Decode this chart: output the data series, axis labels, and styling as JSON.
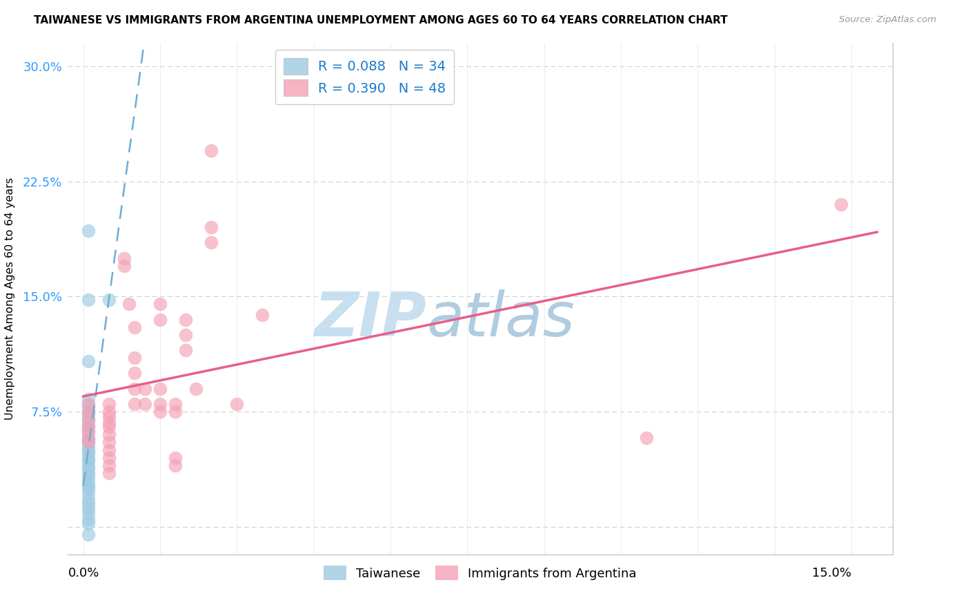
{
  "title": "TAIWANESE VS IMMIGRANTS FROM ARGENTINA UNEMPLOYMENT AMONG AGES 60 TO 64 YEARS CORRELATION CHART",
  "source": "Source: ZipAtlas.com",
  "ylabel": "Unemployment Among Ages 60 to 64 years",
  "y_ticks": [
    0.0,
    0.075,
    0.15,
    0.225,
    0.3
  ],
  "y_tick_labels": [
    "",
    "7.5%",
    "15.0%",
    "22.5%",
    "30.0%"
  ],
  "xlim": [
    -0.003,
    0.158
  ],
  "ylim": [
    -0.018,
    0.315
  ],
  "legend_tw": {
    "R": 0.088,
    "N": 34
  },
  "legend_ar": {
    "R": 0.39,
    "N": 48
  },
  "taiwanese_scatter": [
    [
      0.001,
      0.193
    ],
    [
      0.001,
      0.148
    ],
    [
      0.005,
      0.148
    ],
    [
      0.001,
      0.108
    ],
    [
      0.001,
      0.083
    ],
    [
      0.001,
      0.079
    ],
    [
      0.001,
      0.075
    ],
    [
      0.001,
      0.073
    ],
    [
      0.001,
      0.07
    ],
    [
      0.001,
      0.068
    ],
    [
      0.001,
      0.065
    ],
    [
      0.001,
      0.062
    ],
    [
      0.001,
      0.058
    ],
    [
      0.001,
      0.055
    ],
    [
      0.001,
      0.052
    ],
    [
      0.001,
      0.05
    ],
    [
      0.001,
      0.048
    ],
    [
      0.001,
      0.045
    ],
    [
      0.001,
      0.043
    ],
    [
      0.001,
      0.04
    ],
    [
      0.001,
      0.038
    ],
    [
      0.001,
      0.035
    ],
    [
      0.001,
      0.033
    ],
    [
      0.001,
      0.03
    ],
    [
      0.001,
      0.027
    ],
    [
      0.001,
      0.025
    ],
    [
      0.001,
      0.022
    ],
    [
      0.001,
      0.018
    ],
    [
      0.001,
      0.015
    ],
    [
      0.001,
      0.012
    ],
    [
      0.001,
      0.009
    ],
    [
      0.001,
      0.005
    ],
    [
      0.001,
      0.002
    ],
    [
      0.001,
      -0.005
    ]
  ],
  "argentina_scatter": [
    [
      0.001,
      0.08
    ],
    [
      0.001,
      0.075
    ],
    [
      0.001,
      0.07
    ],
    [
      0.001,
      0.065
    ],
    [
      0.001,
      0.062
    ],
    [
      0.001,
      0.058
    ],
    [
      0.001,
      0.055
    ],
    [
      0.005,
      0.08
    ],
    [
      0.005,
      0.075
    ],
    [
      0.005,
      0.072
    ],
    [
      0.005,
      0.068
    ],
    [
      0.005,
      0.065
    ],
    [
      0.005,
      0.06
    ],
    [
      0.005,
      0.055
    ],
    [
      0.005,
      0.05
    ],
    [
      0.005,
      0.045
    ],
    [
      0.005,
      0.04
    ],
    [
      0.005,
      0.035
    ],
    [
      0.008,
      0.175
    ],
    [
      0.008,
      0.17
    ],
    [
      0.009,
      0.145
    ],
    [
      0.01,
      0.13
    ],
    [
      0.01,
      0.11
    ],
    [
      0.01,
      0.1
    ],
    [
      0.01,
      0.09
    ],
    [
      0.01,
      0.08
    ],
    [
      0.012,
      0.09
    ],
    [
      0.012,
      0.08
    ],
    [
      0.015,
      0.145
    ],
    [
      0.015,
      0.135
    ],
    [
      0.015,
      0.09
    ],
    [
      0.015,
      0.08
    ],
    [
      0.015,
      0.075
    ],
    [
      0.018,
      0.08
    ],
    [
      0.018,
      0.075
    ],
    [
      0.018,
      0.045
    ],
    [
      0.018,
      0.04
    ],
    [
      0.02,
      0.135
    ],
    [
      0.02,
      0.125
    ],
    [
      0.02,
      0.115
    ],
    [
      0.022,
      0.09
    ],
    [
      0.025,
      0.245
    ],
    [
      0.025,
      0.195
    ],
    [
      0.025,
      0.185
    ],
    [
      0.03,
      0.08
    ],
    [
      0.035,
      0.138
    ],
    [
      0.11,
      0.058
    ],
    [
      0.148,
      0.21
    ]
  ],
  "tw_line_color": "#6baed6",
  "ar_line_color": "#e85d8a",
  "scatter_blue": "#9ecae1",
  "scatter_pink": "#f4a0b5",
  "background_color": "#ffffff",
  "grid_color": "#d0d0d0",
  "grid_style": "--"
}
